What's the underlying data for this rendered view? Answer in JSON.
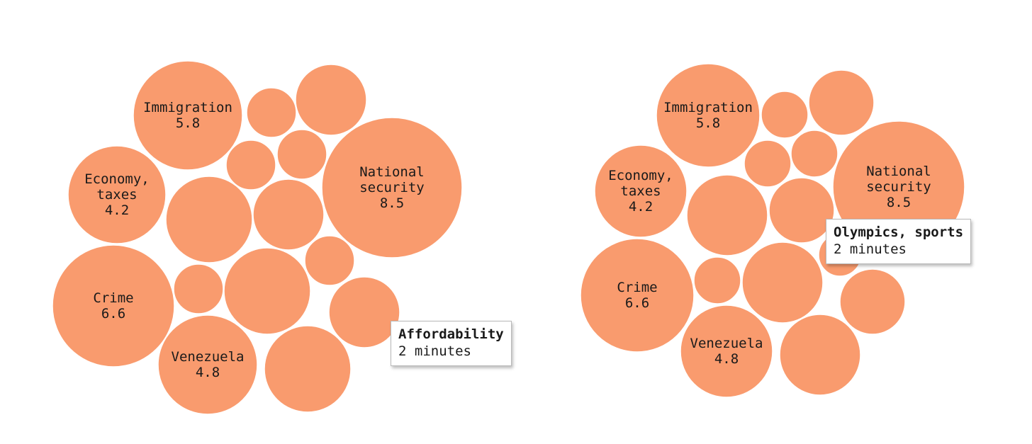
{
  "colors": {
    "bubble": "#f99b6e",
    "bubble_stroke": "#ffffff"
  },
  "chart_data": [
    {
      "type": "bubble",
      "unit": "minutes",
      "labeled": [
        {
          "name": "Immigration",
          "lines": [
            "Immigration"
          ],
          "value": 5.8
        },
        {
          "name": "Economy, taxes",
          "lines": [
            "Economy,",
            "taxes"
          ],
          "value": 4.2
        },
        {
          "name": "National security",
          "lines": [
            "National",
            "security"
          ],
          "value": 8.5
        },
        {
          "name": "Crime",
          "lines": [
            "Crime"
          ],
          "value": 6.6
        },
        {
          "name": "Venezuela",
          "lines": [
            "Venezuela"
          ],
          "value": 4.8
        }
      ],
      "tooltip": {
        "name": "Affordability",
        "value_text": "2 minutes"
      }
    },
    {
      "type": "bubble",
      "unit": "minutes",
      "labeled": [
        {
          "name": "Immigration",
          "lines": [
            "Immigration"
          ],
          "value": 5.8
        },
        {
          "name": "Economy, taxes",
          "lines": [
            "Economy,",
            "taxes"
          ],
          "value": 4.2
        },
        {
          "name": "National security",
          "lines": [
            "National",
            "security"
          ],
          "value": 8.5
        },
        {
          "name": "Crime",
          "lines": [
            "Crime"
          ],
          "value": 6.6
        },
        {
          "name": "Venezuela",
          "lines": [
            "Venezuela"
          ],
          "value": 4.8
        }
      ],
      "tooltip": {
        "name": "Olympics, sports",
        "value_text": "2 minutes"
      }
    }
  ]
}
